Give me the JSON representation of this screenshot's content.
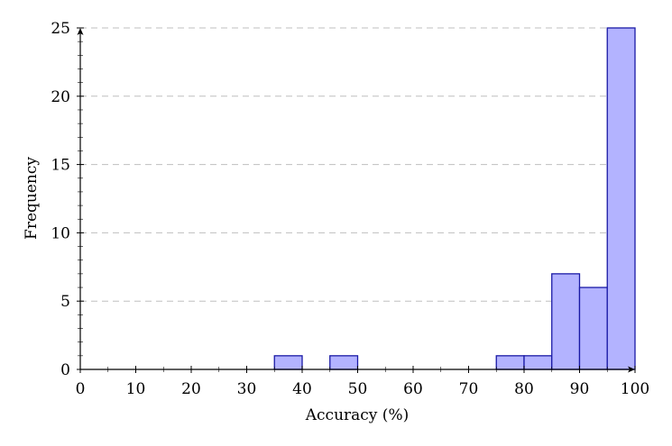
{
  "chart_data": {
    "type": "bar",
    "subtype": "histogram",
    "title": "",
    "xlabel": "Accuracy (%)",
    "ylabel": "Frequency",
    "xlim": [
      0,
      100
    ],
    "ylim": [
      0,
      25
    ],
    "x_ticks": [
      0,
      10,
      20,
      30,
      40,
      50,
      60,
      70,
      80,
      90,
      100
    ],
    "y_ticks": [
      0,
      5,
      10,
      15,
      20,
      25
    ],
    "bin_width": 5,
    "bins": [
      {
        "start": 35,
        "end": 40,
        "count": 1
      },
      {
        "start": 45,
        "end": 50,
        "count": 1
      },
      {
        "start": 75,
        "end": 80,
        "count": 1
      },
      {
        "start": 80,
        "end": 85,
        "count": 1
      },
      {
        "start": 85,
        "end": 90,
        "count": 7
      },
      {
        "start": 90,
        "end": 95,
        "count": 6
      },
      {
        "start": 95,
        "end": 100,
        "count": 25
      }
    ],
    "categories": [
      "35-40",
      "45-50",
      "75-80",
      "80-85",
      "85-90",
      "90-95",
      "95-100"
    ],
    "values": [
      1,
      1,
      1,
      1,
      7,
      6,
      25
    ],
    "grid": {
      "y_major": true,
      "style": "dashed"
    },
    "legend": null,
    "colors": {
      "bar_fill": "#b3b3ff",
      "bar_stroke": "#1a1aa6",
      "grid": "#bfbfbf",
      "axis": "#000000"
    }
  }
}
